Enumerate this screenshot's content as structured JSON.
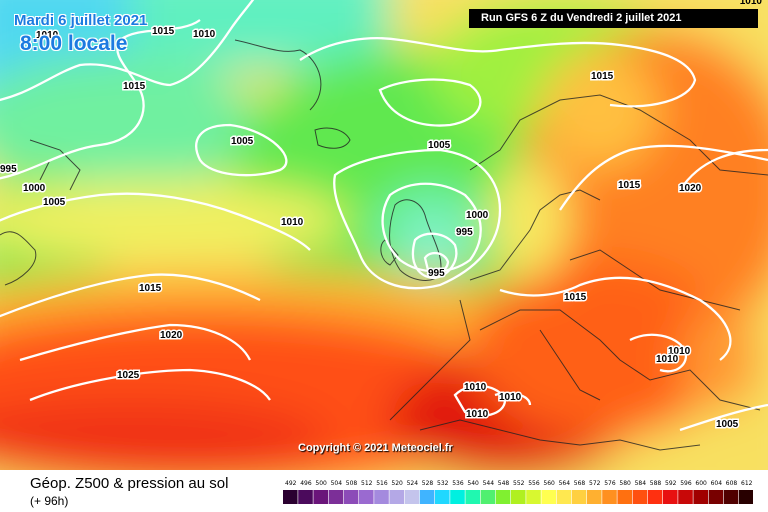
{
  "header": {
    "valid_date": "Mardi 6 juillet 2021",
    "local_time": "8:00 locale",
    "run_info": "Run GFS 6 Z du Vendredi 2 juillet 2021",
    "corner_isobar": "1010"
  },
  "map": {
    "copyright": "Copyright © 2021 Meteociel.fr",
    "isobar_labels": [
      "1010",
      "1015",
      "1010",
      "1015",
      "995",
      "1000",
      "1005",
      "1005",
      "1005",
      "1015",
      "1015",
      "1020",
      "1010",
      "1000",
      "995",
      "995",
      "1015",
      "1020",
      "1025",
      "1015",
      "1010",
      "1010",
      "1010",
      "1010",
      "1010",
      "1005"
    ]
  },
  "legend": {
    "title": "Géop. Z500 & pression au sol",
    "lead_time": "(+ 96h)",
    "scale_values": [
      "492",
      "496",
      "500",
      "504",
      "508",
      "512",
      "516",
      "520",
      "524",
      "528",
      "532",
      "536",
      "540",
      "544",
      "548",
      "552",
      "556",
      "560",
      "564",
      "568",
      "572",
      "576",
      "580",
      "584",
      "588",
      "592",
      "596",
      "600",
      "604",
      "608",
      "612"
    ],
    "scale_colors": [
      "#2a0030",
      "#4b0a5c",
      "#6a157a",
      "#7c2f98",
      "#8c4bb8",
      "#9a6ad0",
      "#a48ade",
      "#b4a8e6",
      "#c4c4ec",
      "#40b4ff",
      "#20d8ff",
      "#00f0e0",
      "#20f8b0",
      "#50f070",
      "#80f030",
      "#b0f020",
      "#d8f830",
      "#ffff50",
      "#ffe850",
      "#ffd040",
      "#ffb030",
      "#ff9020",
      "#ff7010",
      "#ff5010",
      "#ff3010",
      "#e81010",
      "#c80808",
      "#a00000",
      "#780000",
      "#500000",
      "#280000"
    ]
  }
}
